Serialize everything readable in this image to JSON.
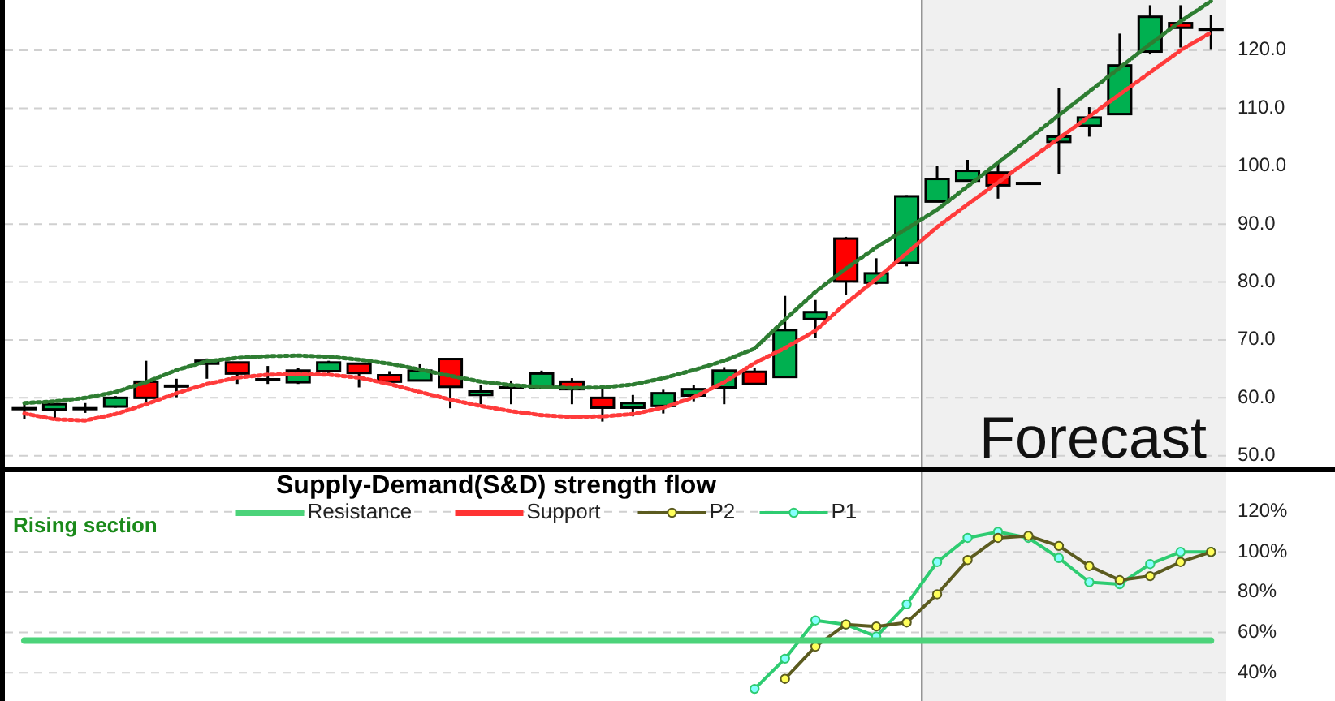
{
  "chart_data": [
    {
      "type": "candlestick",
      "categories": [
        null,
        null,
        null,
        null,
        null,
        null,
        null,
        null,
        null,
        null,
        null,
        null,
        null,
        null,
        null,
        null,
        null,
        null,
        null,
        null,
        null,
        null,
        null,
        null,
        null,
        null,
        null,
        null,
        null,
        null,
        null,
        null,
        null,
        null,
        null,
        null,
        null,
        null,
        null,
        null
      ],
      "ylim": [
        48,
        128.7
      ],
      "yticks": [
        {
          "value": 50,
          "label": "50.0"
        },
        {
          "value": 60,
          "label": "60.0"
        },
        {
          "value": 70,
          "label": "70.0"
        },
        {
          "value": 80,
          "label": "80.0"
        },
        {
          "value": 90,
          "label": "90.0"
        },
        {
          "value": 100,
          "label": "100.0"
        },
        {
          "value": 110,
          "label": "110.0"
        },
        {
          "value": 120,
          "label": "120.0"
        }
      ],
      "tick_labels": "y",
      "grid": "y",
      "annotations": [
        "Forecast"
      ],
      "ohlc": [
        [
          58.2,
          59.1,
          56.3,
          58.2
        ],
        [
          58.0,
          59.0,
          56.5,
          58.9
        ],
        [
          58.2,
          59.1,
          57.4,
          58.2
        ],
        [
          58.5,
          60.3,
          58.3,
          60.0
        ],
        [
          62.8,
          66.4,
          58.5,
          60.0
        ],
        [
          62.1,
          63.3,
          60.1,
          62.1
        ],
        [
          65.9,
          66.8,
          63.3,
          66.4
        ],
        [
          66.1,
          66.2,
          62.4,
          64.2
        ],
        [
          63.2,
          65.5,
          62.4,
          63.2
        ],
        [
          62.7,
          65.2,
          62.4,
          64.7
        ],
        [
          64.6,
          66.4,
          63.9,
          66.1
        ],
        [
          65.9,
          66.0,
          61.8,
          64.3
        ],
        [
          63.9,
          64.6,
          62.4,
          62.8
        ],
        [
          63.0,
          65.8,
          63.0,
          64.7
        ],
        [
          66.7,
          66.7,
          58.2,
          61.9
        ],
        [
          60.5,
          62.2,
          58.9,
          61.1
        ],
        [
          61.8,
          63.0,
          58.9,
          61.8
        ],
        [
          61.8,
          64.7,
          61.8,
          64.2
        ],
        [
          62.8,
          63.4,
          58.9,
          61.5
        ],
        [
          60.0,
          61.7,
          55.9,
          58.3
        ],
        [
          58.3,
          60.5,
          56.8,
          59.1
        ],
        [
          58.6,
          61.4,
          57.3,
          60.8
        ],
        [
          60.4,
          62.2,
          59.4,
          61.5
        ],
        [
          61.8,
          65.3,
          58.9,
          64.7
        ],
        [
          64.5,
          65.2,
          62.2,
          62.4
        ],
        [
          63.6,
          77.6,
          63.6,
          71.7
        ],
        [
          73.6,
          76.9,
          70.3,
          74.8
        ],
        [
          87.5,
          87.8,
          77.8,
          80.1
        ],
        [
          79.9,
          84.1,
          79.6,
          81.5
        ],
        [
          83.3,
          95.0,
          82.7,
          94.8
        ],
        [
          93.9,
          100.0,
          93.9,
          97.8
        ],
        [
          97.5,
          101.1,
          97.5,
          99.2
        ],
        [
          98.9,
          100.7,
          94.4,
          96.7
        ],
        [
          97.1,
          97.3,
          96.8,
          97.1
        ],
        [
          104.2,
          113.5,
          98.6,
          105.1
        ],
        [
          107.0,
          110.2,
          105.1,
          108.4
        ],
        [
          109.0,
          122.9,
          109.0,
          117.4
        ],
        [
          119.8,
          127.8,
          119.3,
          125.8
        ],
        [
          124.7,
          127.8,
          120.5,
          123.9
        ],
        [
          123.7,
          126.1,
          120.1,
          123.7
        ]
      ],
      "colors": [
        "#000000",
        "#00b050",
        "#000000",
        "#00b050",
        "#ff0000",
        "#000000",
        "#00b050",
        "#ff0000",
        "#000000",
        "#00b050",
        "#00b050",
        "#ff0000",
        "#ff0000",
        "#00b050",
        "#ff0000",
        "#00b050",
        "#000000",
        "#00b050",
        "#ff0000",
        "#ff0000",
        "#00b050",
        "#00b050",
        "#00b050",
        "#00b050",
        "#ff0000",
        "#00b050",
        "#00b050",
        "#ff0000",
        "#00b050",
        "#00b050",
        "#00b050",
        "#00b050",
        "#ff0000",
        "#000000",
        "#00b050",
        "#00b050",
        "#00b050",
        "#00b050",
        "#ff0000",
        "#000000"
      ],
      "series": [
        {
          "type": "line",
          "color": "#2e7d32",
          "line_style": "dotted",
          "values": [
            59.1,
            59.4,
            60.0,
            61.0,
            62.7,
            64.8,
            66.3,
            66.9,
            67.2,
            67.3,
            67.1,
            66.6,
            65.9,
            64.9,
            63.8,
            62.8,
            62.2,
            61.9,
            61.7,
            61.8,
            62.3,
            63.4,
            64.8,
            66.4,
            68.5,
            73.5,
            78.3,
            82.3,
            86.0,
            89.2,
            92.5,
            96.5,
            100.6,
            104.7,
            108.8,
            112.9,
            117.0,
            121.1,
            125.0,
            128.5
          ]
        },
        {
          "type": "line",
          "color": "#ff3b3b",
          "line_style": "dotted",
          "values": [
            57.3,
            56.3,
            56.1,
            57.2,
            58.9,
            60.8,
            62.4,
            63.5,
            64.0,
            64.1,
            64.0,
            63.5,
            62.4,
            61.0,
            59.7,
            58.6,
            57.7,
            57.0,
            56.7,
            56.8,
            57.2,
            58.3,
            60.1,
            62.7,
            66.0,
            68.6,
            71.6,
            76.3,
            80.5,
            85.0,
            89.5,
            93.4,
            97.2,
            101.0,
            104.8,
            108.6,
            112.4,
            116.2,
            120.0,
            123.1
          ]
        }
      ]
    },
    {
      "type": "line",
      "title": "Supply-Demand(S&D)  strength flow",
      "annotations": [
        "Rising section"
      ],
      "categories": [
        null,
        null,
        null,
        null,
        null,
        null,
        null,
        null,
        null,
        null,
        null,
        null,
        null,
        null,
        null,
        null,
        null,
        null,
        null,
        null,
        null,
        null,
        null,
        null,
        null,
        null,
        null,
        null,
        null,
        null,
        null,
        null,
        null,
        null,
        null,
        null,
        null,
        null,
        null,
        null
      ],
      "ylim": [
        26,
        139.6
      ],
      "yticks": [
        {
          "value": 40,
          "label": "40%"
        },
        {
          "value": 60,
          "label": "60%"
        },
        {
          "value": 80,
          "label": "80%"
        },
        {
          "value": 100,
          "label": "100%"
        },
        {
          "value": 120,
          "label": "120%"
        }
      ],
      "tick_labels": "y",
      "grid": "y",
      "legend": "top",
      "series": [
        {
          "name": "Resistance",
          "color": "#4cd37a",
          "values": [
            56,
            56,
            56,
            56,
            56,
            56,
            56,
            56,
            56,
            56,
            56,
            56,
            56,
            56,
            56,
            56,
            56,
            56,
            56,
            56,
            56,
            56,
            56,
            56,
            56,
            56,
            56,
            56,
            56,
            56,
            56,
            56,
            56,
            56,
            56,
            56,
            56,
            56,
            56,
            56
          ]
        },
        {
          "name": "Support",
          "color": "#ff3333",
          "values": [
            null,
            null,
            null,
            null,
            null,
            null,
            null,
            null,
            null,
            null,
            null,
            null,
            null,
            null,
            null,
            null,
            null,
            null,
            null,
            null,
            null,
            null,
            null,
            null,
            null,
            null,
            null,
            null,
            null,
            null,
            null,
            null,
            null,
            null,
            null,
            null,
            null,
            null,
            null,
            null
          ]
        },
        {
          "name": "P2",
          "color": "#5b5b1f",
          "marker": "circle",
          "values": [
            null,
            null,
            null,
            null,
            null,
            null,
            null,
            null,
            null,
            null,
            null,
            null,
            null,
            null,
            null,
            null,
            null,
            null,
            null,
            null,
            null,
            null,
            null,
            null,
            null,
            37,
            53,
            64,
            63,
            65,
            79,
            96,
            107,
            108,
            103,
            93,
            86,
            88,
            95,
            100
          ]
        },
        {
          "name": "P1",
          "color": "#2ecc71",
          "marker": "circle",
          "values": [
            null,
            null,
            null,
            null,
            null,
            null,
            null,
            null,
            null,
            null,
            null,
            null,
            null,
            null,
            null,
            null,
            null,
            null,
            null,
            null,
            null,
            null,
            null,
            null,
            32,
            47,
            66,
            64,
            58,
            74,
            95,
            107,
            110,
            107,
            97,
            85,
            84,
            94,
            100,
            100
          ]
        }
      ]
    }
  ]
}
